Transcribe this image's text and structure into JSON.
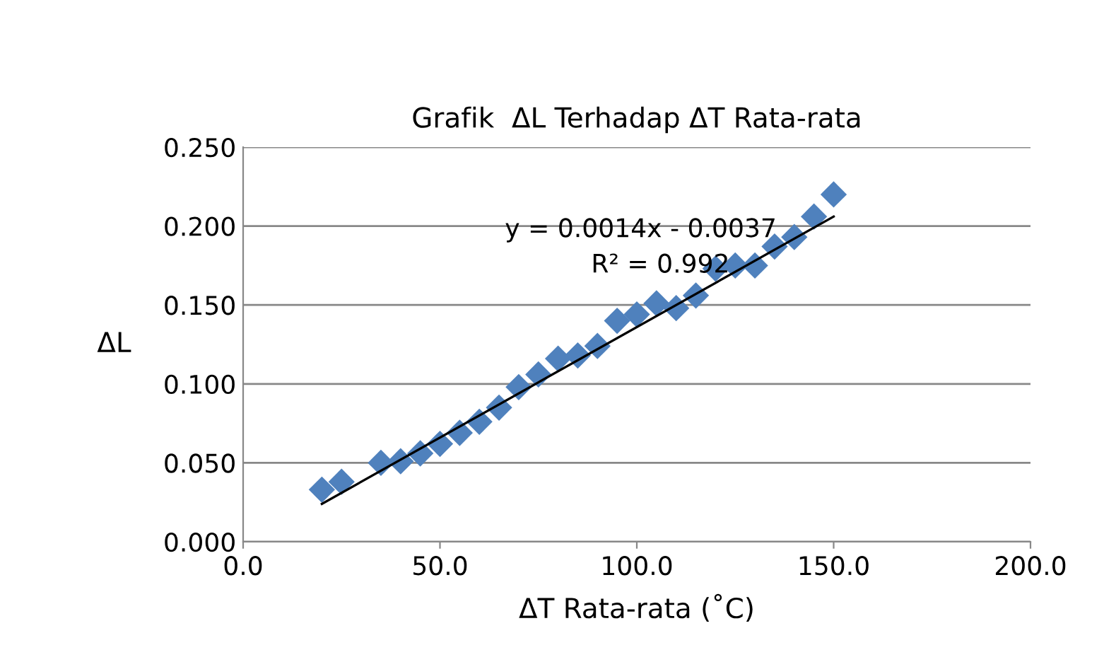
{
  "chart_data": {
    "type": "scatter",
    "title": "Grafik  ΔL Terhadap ΔT Rata-rata",
    "xlabel": "ΔT Rata-rata (˚C)",
    "ylabel": "ΔL",
    "series": [
      {
        "color": "#4f81bd",
        "marker": "diamond",
        "x": [
          20,
          25,
          35,
          40,
          45,
          50,
          55,
          60,
          65,
          70,
          75,
          80,
          85,
          90,
          95,
          100,
          105,
          110,
          115,
          120,
          125,
          130,
          135,
          140,
          145,
          150
        ],
        "values": [
          0.033,
          0.038,
          0.05,
          0.051,
          0.056,
          0.062,
          0.069,
          0.076,
          0.085,
          0.098,
          0.106,
          0.116,
          0.118,
          0.124,
          0.14,
          0.144,
          0.151,
          0.148,
          0.156,
          0.173,
          0.175,
          0.175,
          0.187,
          0.193,
          0.206,
          0.22
        ]
      },
      {
        "type": "line",
        "color": "#000000",
        "marker": "none",
        "line_style": "solid",
        "x": [
          20,
          150
        ],
        "values": [
          0.024,
          0.206
        ]
      }
    ],
    "annotations": [
      "y = 0.0014x - 0.0037",
      "R² = 0.992"
    ],
    "xlim": [
      0,
      200
    ],
    "xticks": [
      {
        "value": 0,
        "label": "0.0"
      },
      {
        "value": 50,
        "label": "50.0"
      },
      {
        "value": 100,
        "label": "100.0"
      },
      {
        "value": 150,
        "label": "150.0"
      },
      {
        "value": 200,
        "label": "200.0"
      }
    ],
    "ylim": [
      0,
      0.25
    ],
    "yticks": [
      {
        "value": 0,
        "label": "0.000"
      },
      {
        "value": 0.05,
        "label": "0.050"
      },
      {
        "value": 0.1,
        "label": "0.100"
      },
      {
        "value": 0.15,
        "label": "0.150"
      },
      {
        "value": 0.2,
        "label": "0.200"
      },
      {
        "value": 0.25,
        "label": "0.250"
      }
    ],
    "grid": "y",
    "legend": false
  }
}
